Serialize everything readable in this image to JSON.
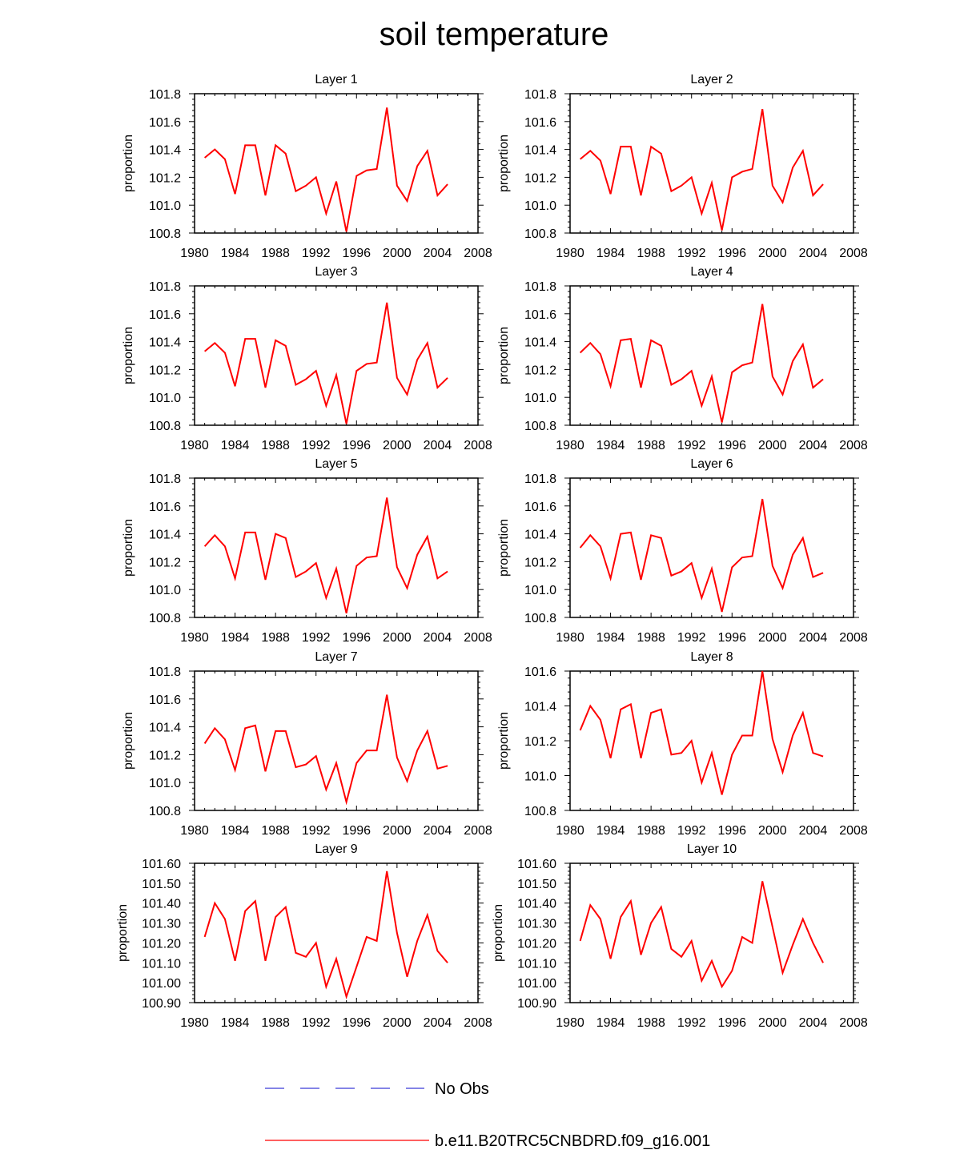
{
  "title": "soil temperature",
  "colors": {
    "series": "#ff0000",
    "no_obs": "#3b3bd6",
    "axis": "#000000"
  },
  "legend": [
    {
      "label": "No Obs",
      "style": "dashed",
      "color": "#3b3bd6"
    },
    {
      "label": "b.e11.B20TRC5CNBDRD.f09_g16.001",
      "style": "solid",
      "color": "#ff0000"
    }
  ],
  "chart_data": [
    {
      "type": "line",
      "title": "Layer 1",
      "ylabel": "proportion",
      "xlim": [
        1980,
        2008
      ],
      "xticks": [
        "1980",
        "1984",
        "1988",
        "1992",
        "1996",
        "2000",
        "2004",
        "2008"
      ],
      "ylim": [
        100.8,
        101.8
      ],
      "yticks": [
        "100.8",
        "101.0",
        "101.2",
        "101.4",
        "101.6",
        "101.8"
      ],
      "x": [
        1981,
        1982,
        1983,
        1984,
        1985,
        1986,
        1987,
        1988,
        1989,
        1990,
        1991,
        1992,
        1993,
        1994,
        1995,
        1996,
        1997,
        1998,
        1999,
        2000,
        2001,
        2002,
        2003,
        2004,
        2005
      ],
      "series": [
        {
          "name": "b.e11.B20TRC5CNBDRD.f09_g16.001",
          "values": [
            101.34,
            101.4,
            101.33,
            101.08,
            101.43,
            101.43,
            101.07,
            101.43,
            101.37,
            101.1,
            101.14,
            101.2,
            100.94,
            101.17,
            100.81,
            101.21,
            101.25,
            101.26,
            101.7,
            101.14,
            101.03,
            101.28,
            101.39,
            101.07,
            101.15
          ]
        }
      ]
    },
    {
      "type": "line",
      "title": "Layer 2",
      "ylabel": "proportion",
      "xlim": [
        1980,
        2008
      ],
      "xticks": [
        "1980",
        "1984",
        "1988",
        "1992",
        "1996",
        "2000",
        "2004",
        "2008"
      ],
      "ylim": [
        100.8,
        101.8
      ],
      "yticks": [
        "100.8",
        "101.0",
        "101.2",
        "101.4",
        "101.6",
        "101.8"
      ],
      "x": [
        1981,
        1982,
        1983,
        1984,
        1985,
        1986,
        1987,
        1988,
        1989,
        1990,
        1991,
        1992,
        1993,
        1994,
        1995,
        1996,
        1997,
        1998,
        1999,
        2000,
        2001,
        2002,
        2003,
        2004,
        2005
      ],
      "series": [
        {
          "name": "b.e11.B20TRC5CNBDRD.f09_g16.001",
          "values": [
            101.33,
            101.39,
            101.32,
            101.08,
            101.42,
            101.42,
            101.07,
            101.42,
            101.37,
            101.1,
            101.14,
            101.2,
            100.94,
            101.16,
            100.82,
            101.2,
            101.24,
            101.26,
            101.69,
            101.14,
            101.02,
            101.27,
            101.39,
            101.07,
            101.15
          ]
        }
      ]
    },
    {
      "type": "line",
      "title": "Layer 3",
      "ylabel": "proportion",
      "xlim": [
        1980,
        2008
      ],
      "xticks": [
        "1980",
        "1984",
        "1988",
        "1992",
        "1996",
        "2000",
        "2004",
        "2008"
      ],
      "ylim": [
        100.8,
        101.8
      ],
      "yticks": [
        "100.8",
        "101.0",
        "101.2",
        "101.4",
        "101.6",
        "101.8"
      ],
      "x": [
        1981,
        1982,
        1983,
        1984,
        1985,
        1986,
        1987,
        1988,
        1989,
        1990,
        1991,
        1992,
        1993,
        1994,
        1995,
        1996,
        1997,
        1998,
        1999,
        2000,
        2001,
        2002,
        2003,
        2004,
        2005
      ],
      "series": [
        {
          "name": "b.e11.B20TRC5CNBDRD.f09_g16.001",
          "values": [
            101.33,
            101.39,
            101.32,
            101.08,
            101.42,
            101.42,
            101.07,
            101.41,
            101.37,
            101.09,
            101.13,
            101.19,
            100.94,
            101.16,
            100.81,
            101.19,
            101.24,
            101.25,
            101.68,
            101.14,
            101.02,
            101.27,
            101.39,
            101.07,
            101.14
          ]
        }
      ]
    },
    {
      "type": "line",
      "title": "Layer 4",
      "ylabel": "proportion",
      "xlim": [
        1980,
        2008
      ],
      "xticks": [
        "1980",
        "1984",
        "1988",
        "1992",
        "1996",
        "2000",
        "2004",
        "2008"
      ],
      "ylim": [
        100.8,
        101.8
      ],
      "yticks": [
        "100.8",
        "101.0",
        "101.2",
        "101.4",
        "101.6",
        "101.8"
      ],
      "x": [
        1981,
        1982,
        1983,
        1984,
        1985,
        1986,
        1987,
        1988,
        1989,
        1990,
        1991,
        1992,
        1993,
        1994,
        1995,
        1996,
        1997,
        1998,
        1999,
        2000,
        2001,
        2002,
        2003,
        2004,
        2005
      ],
      "series": [
        {
          "name": "b.e11.B20TRC5CNBDRD.f09_g16.001",
          "values": [
            101.32,
            101.39,
            101.31,
            101.08,
            101.41,
            101.42,
            101.07,
            101.41,
            101.37,
            101.09,
            101.13,
            101.19,
            100.94,
            101.15,
            100.82,
            101.18,
            101.23,
            101.25,
            101.67,
            101.15,
            101.02,
            101.26,
            101.38,
            101.07,
            101.13
          ]
        }
      ]
    },
    {
      "type": "line",
      "title": "Layer 5",
      "ylabel": "proportion",
      "xlim": [
        1980,
        2008
      ],
      "xticks": [
        "1980",
        "1984",
        "1988",
        "1992",
        "1996",
        "2000",
        "2004",
        "2008"
      ],
      "ylim": [
        100.8,
        101.8
      ],
      "yticks": [
        "100.8",
        "101.0",
        "101.2",
        "101.4",
        "101.6",
        "101.8"
      ],
      "x": [
        1981,
        1982,
        1983,
        1984,
        1985,
        1986,
        1987,
        1988,
        1989,
        1990,
        1991,
        1992,
        1993,
        1994,
        1995,
        1996,
        1997,
        1998,
        1999,
        2000,
        2001,
        2002,
        2003,
        2004,
        2005
      ],
      "series": [
        {
          "name": "b.e11.B20TRC5CNBDRD.f09_g16.001",
          "values": [
            101.31,
            101.39,
            101.31,
            101.08,
            101.41,
            101.41,
            101.07,
            101.4,
            101.37,
            101.09,
            101.13,
            101.19,
            100.94,
            101.15,
            100.83,
            101.17,
            101.23,
            101.24,
            101.66,
            101.16,
            101.01,
            101.25,
            101.38,
            101.08,
            101.13
          ]
        }
      ]
    },
    {
      "type": "line",
      "title": "Layer 6",
      "ylabel": "proportion",
      "xlim": [
        1980,
        2008
      ],
      "xticks": [
        "1980",
        "1984",
        "1988",
        "1992",
        "1996",
        "2000",
        "2004",
        "2008"
      ],
      "ylim": [
        100.8,
        101.8
      ],
      "yticks": [
        "100.8",
        "101.0",
        "101.2",
        "101.4",
        "101.6",
        "101.8"
      ],
      "x": [
        1981,
        1982,
        1983,
        1984,
        1985,
        1986,
        1987,
        1988,
        1989,
        1990,
        1991,
        1992,
        1993,
        1994,
        1995,
        1996,
        1997,
        1998,
        1999,
        2000,
        2001,
        2002,
        2003,
        2004,
        2005
      ],
      "series": [
        {
          "name": "b.e11.B20TRC5CNBDRD.f09_g16.001",
          "values": [
            101.3,
            101.39,
            101.31,
            101.08,
            101.4,
            101.41,
            101.07,
            101.39,
            101.37,
            101.1,
            101.13,
            101.19,
            100.94,
            101.15,
            100.84,
            101.16,
            101.23,
            101.24,
            101.65,
            101.17,
            101.01,
            101.25,
            101.37,
            101.09,
            101.12
          ]
        }
      ]
    },
    {
      "type": "line",
      "title": "Layer 7",
      "ylabel": "proportion",
      "xlim": [
        1980,
        2008
      ],
      "xticks": [
        "1980",
        "1984",
        "1988",
        "1992",
        "1996",
        "2000",
        "2004",
        "2008"
      ],
      "ylim": [
        100.8,
        101.8
      ],
      "yticks": [
        "100.8",
        "101.0",
        "101.2",
        "101.4",
        "101.6",
        "101.8"
      ],
      "x": [
        1981,
        1982,
        1983,
        1984,
        1985,
        1986,
        1987,
        1988,
        1989,
        1990,
        1991,
        1992,
        1993,
        1994,
        1995,
        1996,
        1997,
        1998,
        1999,
        2000,
        2001,
        2002,
        2003,
        2004,
        2005
      ],
      "series": [
        {
          "name": "b.e11.B20TRC5CNBDRD.f09_g16.001",
          "values": [
            101.28,
            101.39,
            101.31,
            101.09,
            101.39,
            101.41,
            101.08,
            101.37,
            101.37,
            101.11,
            101.13,
            101.19,
            100.95,
            101.14,
            100.86,
            101.14,
            101.23,
            101.23,
            101.63,
            101.18,
            101.01,
            101.23,
            101.37,
            101.1,
            101.12
          ]
        }
      ]
    },
    {
      "type": "line",
      "title": "Layer 8",
      "ylabel": "proportion",
      "xlim": [
        1980,
        2008
      ],
      "xticks": [
        "1980",
        "1984",
        "1988",
        "1992",
        "1996",
        "2000",
        "2004",
        "2008"
      ],
      "ylim": [
        100.8,
        101.6
      ],
      "yticks": [
        "100.8",
        "101.0",
        "101.2",
        "101.4",
        "101.6"
      ],
      "x": [
        1981,
        1982,
        1983,
        1984,
        1985,
        1986,
        1987,
        1988,
        1989,
        1990,
        1991,
        1992,
        1993,
        1994,
        1995,
        1996,
        1997,
        1998,
        1999,
        2000,
        2001,
        2002,
        2003,
        2004,
        2005
      ],
      "series": [
        {
          "name": "b.e11.B20TRC5CNBDRD.f09_g16.001",
          "values": [
            101.26,
            101.4,
            101.32,
            101.1,
            101.38,
            101.41,
            101.1,
            101.36,
            101.38,
            101.12,
            101.13,
            101.2,
            100.96,
            101.13,
            100.89,
            101.12,
            101.23,
            101.23,
            101.6,
            101.21,
            101.02,
            101.23,
            101.36,
            101.13,
            101.11
          ]
        }
      ]
    },
    {
      "type": "line",
      "title": "Layer 9",
      "ylabel": "proportion",
      "xlim": [
        1980,
        2008
      ],
      "xticks": [
        "1980",
        "1984",
        "1988",
        "1992",
        "1996",
        "2000",
        "2004",
        "2008"
      ],
      "ylim": [
        100.9,
        101.6
      ],
      "yticks": [
        "100.90",
        "101.00",
        "101.10",
        "101.20",
        "101.30",
        "101.40",
        "101.50",
        "101.60"
      ],
      "x": [
        1981,
        1982,
        1983,
        1984,
        1985,
        1986,
        1987,
        1988,
        1989,
        1990,
        1991,
        1992,
        1993,
        1994,
        1995,
        1996,
        1997,
        1998,
        1999,
        2000,
        2001,
        2002,
        2003,
        2004,
        2005
      ],
      "series": [
        {
          "name": "b.e11.B20TRC5CNBDRD.f09_g16.001",
          "values": [
            101.23,
            101.4,
            101.32,
            101.11,
            101.36,
            101.41,
            101.11,
            101.33,
            101.38,
            101.15,
            101.13,
            101.2,
            100.98,
            101.12,
            100.93,
            101.08,
            101.23,
            101.21,
            101.56,
            101.25,
            101.03,
            101.21,
            101.34,
            101.16,
            101.1
          ]
        }
      ]
    },
    {
      "type": "line",
      "title": "Layer 10",
      "ylabel": "proportion",
      "xlim": [
        1980,
        2008
      ],
      "xticks": [
        "1980",
        "1984",
        "1988",
        "1992",
        "1996",
        "2000",
        "2004",
        "2008"
      ],
      "ylim": [
        100.9,
        101.6
      ],
      "yticks": [
        "100.90",
        "101.00",
        "101.10",
        "101.20",
        "101.30",
        "101.40",
        "101.50",
        "101.60"
      ],
      "x": [
        1981,
        1982,
        1983,
        1984,
        1985,
        1986,
        1987,
        1988,
        1989,
        1990,
        1991,
        1992,
        1993,
        1994,
        1995,
        1996,
        1997,
        1998,
        1999,
        2000,
        2001,
        2002,
        2003,
        2004,
        2005
      ],
      "series": [
        {
          "name": "b.e11.B20TRC5CNBDRD.f09_g16.001",
          "values": [
            101.21,
            101.39,
            101.32,
            101.12,
            101.33,
            101.41,
            101.14,
            101.3,
            101.38,
            101.17,
            101.13,
            101.21,
            101.01,
            101.11,
            100.98,
            101.06,
            101.23,
            101.2,
            101.51,
            101.28,
            101.05,
            101.19,
            101.32,
            101.2,
            101.1
          ]
        }
      ]
    }
  ]
}
